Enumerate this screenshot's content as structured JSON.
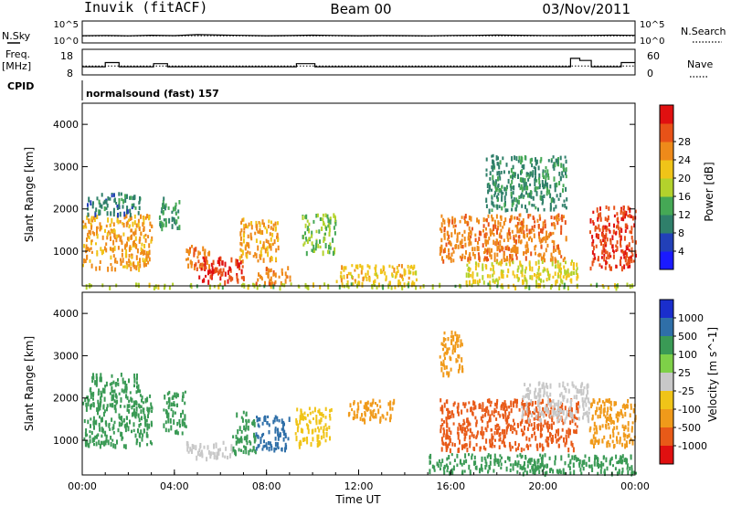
{
  "header": {
    "station": "Inuvik (fitACF)",
    "beam": "Beam 00",
    "date": "03/Nov/2011"
  },
  "chart_data": [
    {
      "type": "line",
      "panel": "noise",
      "left_label": "N.Sky",
      "right_label": "N.Search",
      "left_ticks": [
        "10^5",
        "10^0"
      ],
      "right_ticks": [
        "10^5",
        "10^0"
      ],
      "yscale": "log",
      "ylim": [
        1,
        100000
      ],
      "series": [
        {
          "style": "solid",
          "values": [
            30,
            35,
            28,
            40,
            32,
            60,
            45,
            38,
            30,
            34,
            42,
            36,
            30,
            33,
            31,
            29,
            35,
            38,
            44,
            40,
            36,
            34,
            38,
            41,
            37
          ]
        },
        {
          "style": "dotted",
          "values": [
            25,
            27,
            24,
            28,
            26,
            30,
            28,
            27,
            25,
            26,
            28,
            27,
            25,
            26,
            25,
            24,
            26,
            27,
            29,
            28,
            27,
            26,
            27,
            28,
            27
          ]
        }
      ]
    },
    {
      "type": "line",
      "panel": "frequency",
      "left_label_1": "Freq.",
      "left_label_2": "[MHz]",
      "right_label": "Nave",
      "left_ticks": [
        "18",
        "8"
      ],
      "right_ticks": [
        "60",
        "0"
      ],
      "ylim": [
        8,
        18
      ],
      "nave_lim": [
        0,
        60
      ],
      "freq_series": {
        "style": "solid",
        "points": [
          [
            0,
            11
          ],
          [
            1.0,
            11
          ],
          [
            1.0,
            13
          ],
          [
            1.6,
            13
          ],
          [
            1.6,
            11
          ],
          [
            3.1,
            11
          ],
          [
            3.1,
            12.5
          ],
          [
            3.7,
            12.5
          ],
          [
            3.7,
            11
          ],
          [
            9.3,
            11
          ],
          [
            9.3,
            12.5
          ],
          [
            10.1,
            12.5
          ],
          [
            10.1,
            11
          ],
          [
            21.2,
            11
          ],
          [
            21.2,
            15
          ],
          [
            21.6,
            15
          ],
          [
            21.6,
            14
          ],
          [
            22.1,
            14
          ],
          [
            22.1,
            11
          ],
          [
            23.4,
            11
          ],
          [
            23.4,
            13
          ],
          [
            24,
            13
          ]
        ]
      },
      "nave_series": {
        "style": "dotted",
        "values": [
          20,
          20,
          20,
          20,
          20,
          20,
          20,
          20,
          20,
          20,
          20,
          20,
          20,
          20,
          20,
          20,
          20,
          20,
          20,
          20,
          20,
          20,
          20,
          20,
          20
        ]
      }
    },
    {
      "type": "table",
      "panel": "cpid",
      "label": "CPID",
      "segments": [
        {
          "start": 0,
          "end": 24,
          "text": "normalsound (fast) 157"
        }
      ]
    },
    {
      "type": "heatmap",
      "panel": "power",
      "ylabel": "Slant Range [km]",
      "yticks": [
        1000,
        2000,
        3000,
        4000
      ],
      "ylim": [
        180,
        4500
      ],
      "xlim": [
        0,
        24
      ],
      "colorbar_label": "Power [dB]",
      "colorbar_ticks": [
        4,
        8,
        12,
        16,
        20,
        24,
        28
      ],
      "colorbar_colors": [
        "#1a1aff",
        "#2240b8",
        "#2f7f6a",
        "#45a855",
        "#b3d22c",
        "#f0c418",
        "#ee8a1a",
        "#e85218",
        "#e01010"
      ],
      "regions": [
        {
          "x": [
            0,
            3.0
          ],
          "y": [
            600,
            1900
          ],
          "v": 22
        },
        {
          "x": [
            0.2,
            2.5
          ],
          "y": [
            1900,
            2400
          ],
          "v": 9
        },
        {
          "x": [
            3.3,
            4.2
          ],
          "y": [
            1500,
            2300
          ],
          "v": 11
        },
        {
          "x": [
            4.4,
            5.5
          ],
          "y": [
            600,
            1200
          ],
          "v": 24
        },
        {
          "x": [
            5.0,
            7.0
          ],
          "y": [
            300,
            900
          ],
          "v": 28
        },
        {
          "x": [
            6.8,
            8.5
          ],
          "y": [
            800,
            1800
          ],
          "v": 22
        },
        {
          "x": [
            7.5,
            9.0
          ],
          "y": [
            250,
            650
          ],
          "v": 24
        },
        {
          "x": [
            9.5,
            11.0
          ],
          "y": [
            1000,
            1900
          ],
          "v": 14
        },
        {
          "x": [
            11.0,
            14.5
          ],
          "y": [
            250,
            700
          ],
          "v": 20
        },
        {
          "x": [
            15.5,
            21.0
          ],
          "y": [
            800,
            1900
          ],
          "v": 24
        },
        {
          "x": [
            16.5,
            21.5
          ],
          "y": [
            300,
            800
          ],
          "v": 18
        },
        {
          "x": [
            22.0,
            24.0
          ],
          "y": [
            600,
            2100
          ],
          "v": 28
        },
        {
          "x": [
            17.5,
            21.0
          ],
          "y": [
            2000,
            3300
          ],
          "v": 10
        },
        {
          "x": [
            0,
            24
          ],
          "y": [
            180,
            260
          ],
          "v": 16
        }
      ]
    },
    {
      "type": "heatmap",
      "panel": "velocity",
      "ylabel": "Slant Range [km]",
      "yticks": [
        1000,
        2000,
        3000,
        4000
      ],
      "ylim": [
        180,
        4500
      ],
      "xlim": [
        0,
        24
      ],
      "xticks": [
        "00:00",
        "04:00",
        "08:00",
        "12:00",
        "16:00",
        "20:00",
        "00:00"
      ],
      "xlabel": "Time UT",
      "colorbar_label": "Velocity [m s^-1]",
      "colorbar_ticks": [
        "1000",
        "500",
        "100",
        "25",
        "-25",
        "-100",
        "-500",
        "-1000"
      ],
      "colorbar_colors": [
        "#1a2ecc",
        "#2f6fa8",
        "#3a9a55",
        "#7ed048",
        "#c8c8c8",
        "#f0c418",
        "#f09a1a",
        "#e85a18",
        "#e01010"
      ],
      "regions": [
        {
          "x": [
            0,
            3.0
          ],
          "y": [
            900,
            2100
          ],
          "v": 150
        },
        {
          "x": [
            0.3,
            2.5
          ],
          "y": [
            2100,
            2600
          ],
          "v": 120
        },
        {
          "x": [
            3.5,
            4.5
          ],
          "y": [
            1200,
            2200
          ],
          "v": 200
        },
        {
          "x": [
            4.5,
            6.5
          ],
          "y": [
            600,
            1000
          ],
          "v": 0
        },
        {
          "x": [
            6.5,
            7.5
          ],
          "y": [
            700,
            1700
          ],
          "v": 200
        },
        {
          "x": [
            7.5,
            9.0
          ],
          "y": [
            800,
            1600
          ],
          "v": 800
        },
        {
          "x": [
            9.2,
            10.8
          ],
          "y": [
            900,
            1800
          ],
          "v": -30
        },
        {
          "x": [
            11.5,
            13.5
          ],
          "y": [
            1500,
            2000
          ],
          "v": -200
        },
        {
          "x": [
            15.5,
            21.5
          ],
          "y": [
            800,
            2000
          ],
          "v": -600
        },
        {
          "x": [
            19.0,
            22.0
          ],
          "y": [
            1500,
            2400
          ],
          "v": 0
        },
        {
          "x": [
            22.0,
            24.0
          ],
          "y": [
            900,
            2000
          ],
          "v": -300
        },
        {
          "x": [
            15.0,
            24.0
          ],
          "y": [
            250,
            700
          ],
          "v": 120
        },
        {
          "x": [
            15.5,
            16.5
          ],
          "y": [
            2600,
            3600
          ],
          "v": -200
        }
      ]
    }
  ]
}
